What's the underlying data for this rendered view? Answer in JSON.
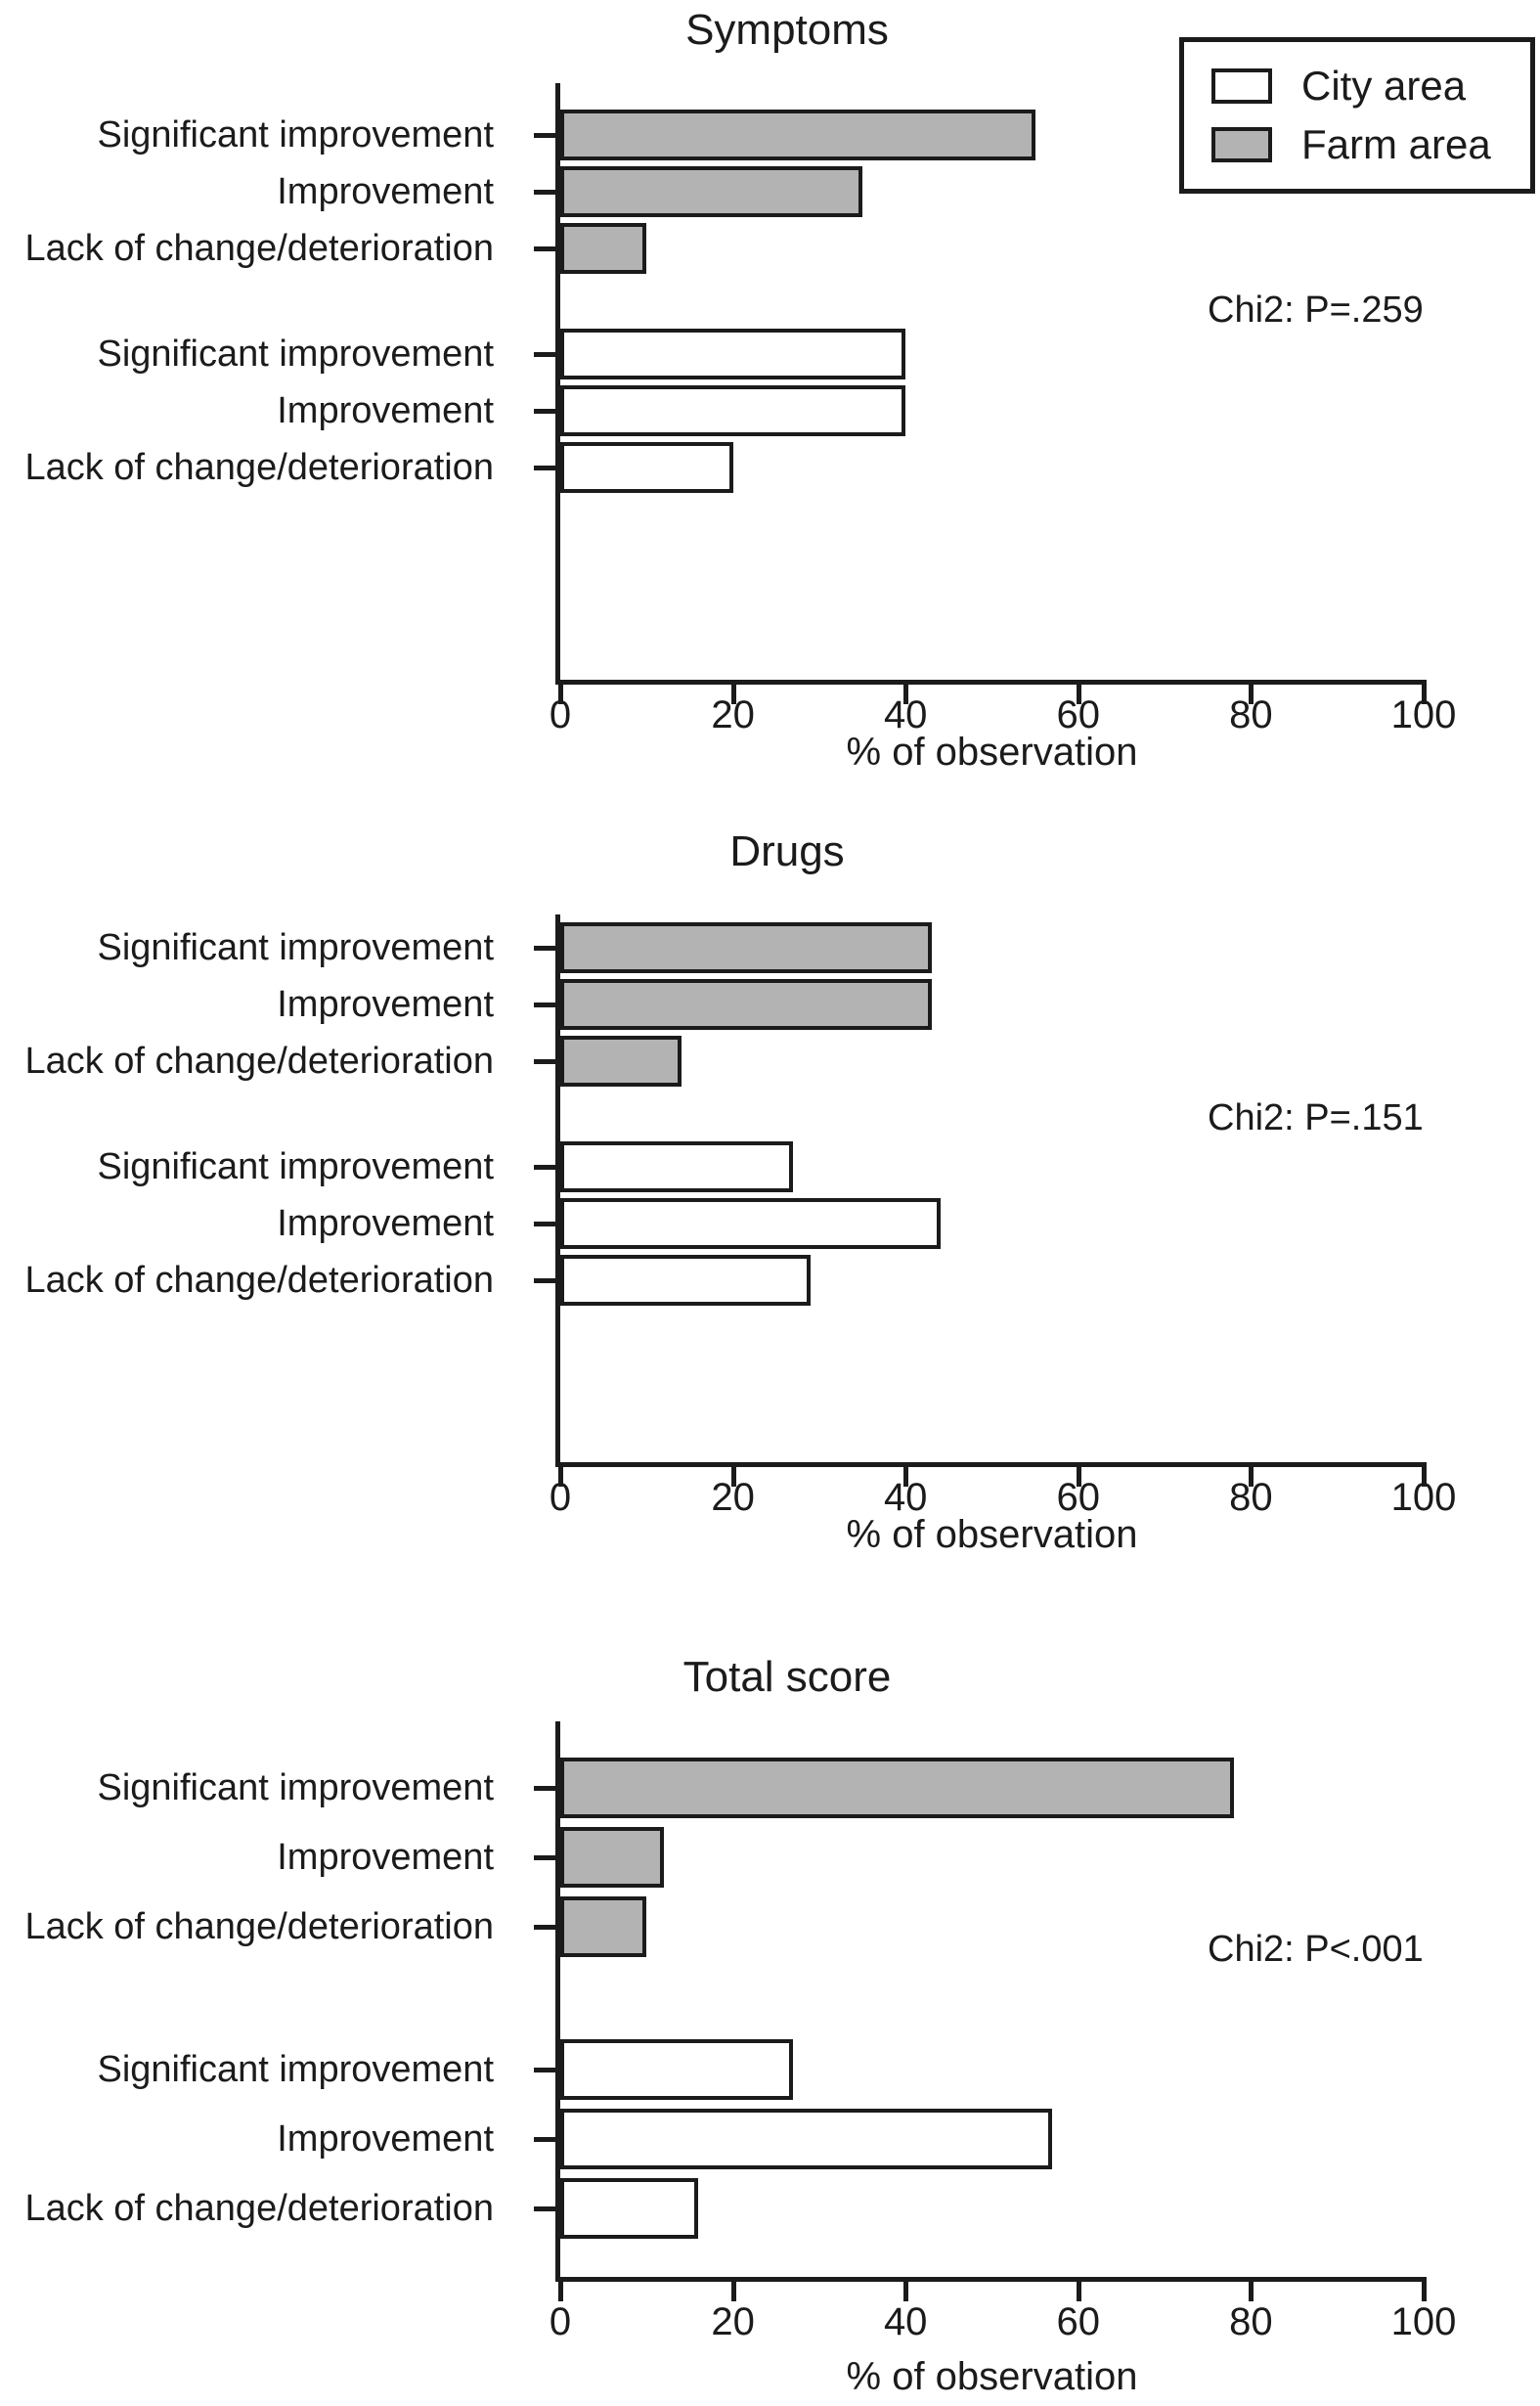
{
  "colors": {
    "farm_fill": "#b3b3b3",
    "city_fill": "#ffffff",
    "ink": "#1b1b1b"
  },
  "legend": {
    "position": "top-right",
    "items": [
      {
        "label": "City area",
        "swatch": "city-white"
      },
      {
        "label": "Farm area",
        "swatch": "farm-gray"
      }
    ]
  },
  "axis": {
    "tick_labels": [
      "0",
      "20",
      "40",
      "60",
      "80",
      "100"
    ],
    "xlabel": "% of observation"
  },
  "chart_data": [
    {
      "type": "bar",
      "orientation": "horizontal",
      "title": "Symptoms",
      "categories": [
        "Significant improvement",
        "Improvement",
        "Lack of change/deterioration"
      ],
      "series": [
        {
          "name": "Farm area",
          "values": [
            55,
            35,
            10
          ]
        },
        {
          "name": "City area",
          "values": [
            40,
            40,
            20
          ]
        }
      ],
      "annotation": "Chi2: P=.259",
      "xlabel": "% of observation",
      "xlim": [
        0,
        100
      ],
      "xticks": [
        0,
        20,
        40,
        60,
        80,
        100
      ],
      "grid": false,
      "legend_position": "top-right"
    },
    {
      "type": "bar",
      "orientation": "horizontal",
      "title": "Drugs",
      "categories": [
        "Significant improvement",
        "Improvement",
        "Lack of change/deterioration"
      ],
      "series": [
        {
          "name": "Farm area",
          "values": [
            43,
            43,
            14
          ]
        },
        {
          "name": "City area",
          "values": [
            27,
            44,
            29
          ]
        }
      ],
      "annotation": "Chi2: P=.151",
      "xlabel": "% of observation",
      "xlim": [
        0,
        100
      ],
      "xticks": [
        0,
        20,
        40,
        60,
        80,
        100
      ],
      "grid": false,
      "legend_position": "none"
    },
    {
      "type": "bar",
      "orientation": "horizontal",
      "title": "Total score",
      "categories": [
        "Significant improvement",
        "Improvement",
        "Lack of change/deterioration"
      ],
      "series": [
        {
          "name": "Farm area",
          "values": [
            78,
            12,
            10
          ]
        },
        {
          "name": "City area",
          "values": [
            27,
            57,
            16
          ]
        }
      ],
      "annotation": "Chi2: P<.001",
      "xlabel": "% of observation",
      "xlim": [
        0,
        100
      ],
      "xticks": [
        0,
        20,
        40,
        60,
        80,
        100
      ],
      "grid": false,
      "legend_position": "none"
    }
  ]
}
